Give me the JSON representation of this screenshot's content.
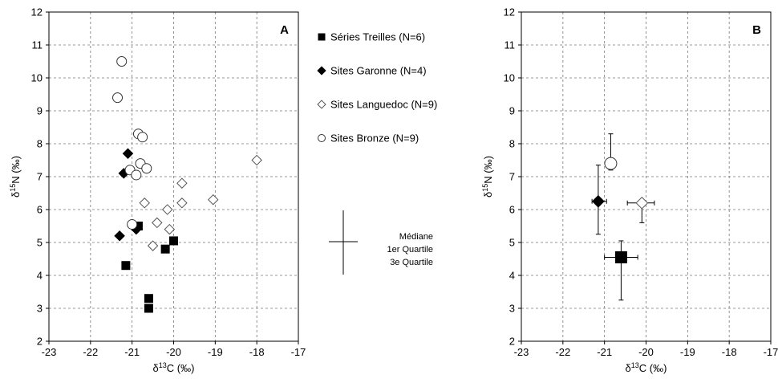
{
  "chart_data": [
    {
      "type": "scatter",
      "panel_label": "A",
      "xlim": [
        -23,
        -17
      ],
      "ylim": [
        2,
        12
      ],
      "x_ticks": [
        "-23",
        "-22",
        "-21",
        "-20",
        "-19",
        "-18",
        "-17"
      ],
      "y_ticks": [
        "2",
        "3",
        "4",
        "5",
        "6",
        "7",
        "8",
        "9",
        "10",
        "11",
        "12"
      ],
      "grid": true,
      "xlabel": "δ13C (‰)",
      "ylabel": "δ15N (‰)",
      "legend_placement": "right",
      "series": [
        {
          "name": "Séries Treilles (N=6)",
          "marker": "square-filled",
          "points": [
            [
              -21.15,
              4.3
            ],
            [
              -20.85,
              5.5
            ],
            [
              -20.2,
              4.8
            ],
            [
              -20.0,
              5.05
            ],
            [
              -20.6,
              3.3
            ],
            [
              -20.6,
              3.0
            ]
          ]
        },
        {
          "name": "Sites Garonne (N=4)",
          "marker": "diamond-filled",
          "points": [
            [
              -21.1,
              7.7
            ],
            [
              -21.2,
              7.1
            ],
            [
              -21.3,
              5.2
            ],
            [
              -20.9,
              5.4
            ]
          ]
        },
        {
          "name": "Sites Languedoc (N=9)",
          "marker": "diamond-open",
          "points": [
            [
              -18.0,
              7.5
            ],
            [
              -19.8,
              6.8
            ],
            [
              -19.05,
              6.3
            ],
            [
              -19.8,
              6.2
            ],
            [
              -20.7,
              6.2
            ],
            [
              -20.15,
              6.0
            ],
            [
              -20.4,
              5.6
            ],
            [
              -20.1,
              5.4
            ],
            [
              -20.5,
              4.9
            ]
          ]
        },
        {
          "name": "Sites Bronze (N=9)",
          "marker": "circle-open",
          "points": [
            [
              -21.25,
              10.5
            ],
            [
              -21.35,
              9.4
            ],
            [
              -20.85,
              8.3
            ],
            [
              -20.75,
              8.2
            ],
            [
              -20.8,
              7.4
            ],
            [
              -20.65,
              7.25
            ],
            [
              -21.05,
              7.2
            ],
            [
              -20.9,
              7.05
            ],
            [
              -21.0,
              5.55
            ]
          ]
        }
      ],
      "error_key": {
        "labels": [
          "Médiane",
          "1er Quartile",
          "3e Quartile"
        ]
      }
    },
    {
      "type": "scatter",
      "panel_label": "B",
      "xlim": [
        -23,
        -17
      ],
      "ylim": [
        2,
        12
      ],
      "x_ticks": [
        "-23",
        "-22",
        "-21",
        "-20",
        "-19",
        "-18",
        "-17"
      ],
      "y_ticks": [
        "2",
        "3",
        "4",
        "5",
        "6",
        "7",
        "8",
        "9",
        "10",
        "11",
        "12"
      ],
      "grid": true,
      "xlabel": "δ13C (‰)",
      "ylabel": "δ15N (‰)",
      "series": [
        {
          "ref": "Séries Treilles (N=6)",
          "marker": "square-filled",
          "median": [
            -20.6,
            4.55
          ],
          "x_range": [
            -21.0,
            -20.2
          ],
          "y_range": [
            3.25,
            5.05
          ]
        },
        {
          "ref": "Sites Garonne (N=4)",
          "marker": "diamond-filled",
          "median": [
            -21.15,
            6.25
          ],
          "x_range": [
            -21.3,
            -20.95
          ],
          "y_range": [
            5.25,
            7.35
          ]
        },
        {
          "ref": "Sites Languedoc (N=9)",
          "marker": "diamond-open",
          "median": [
            -20.1,
            6.2
          ],
          "x_range": [
            -20.45,
            -19.8
          ],
          "y_range": [
            5.6,
            6.3
          ]
        },
        {
          "ref": "Sites Bronze (N=9)",
          "marker": "circle-open",
          "median": [
            -20.85,
            7.4
          ],
          "x_range": [
            -20.95,
            -20.75
          ],
          "y_range": [
            7.2,
            8.3
          ]
        }
      ]
    }
  ]
}
